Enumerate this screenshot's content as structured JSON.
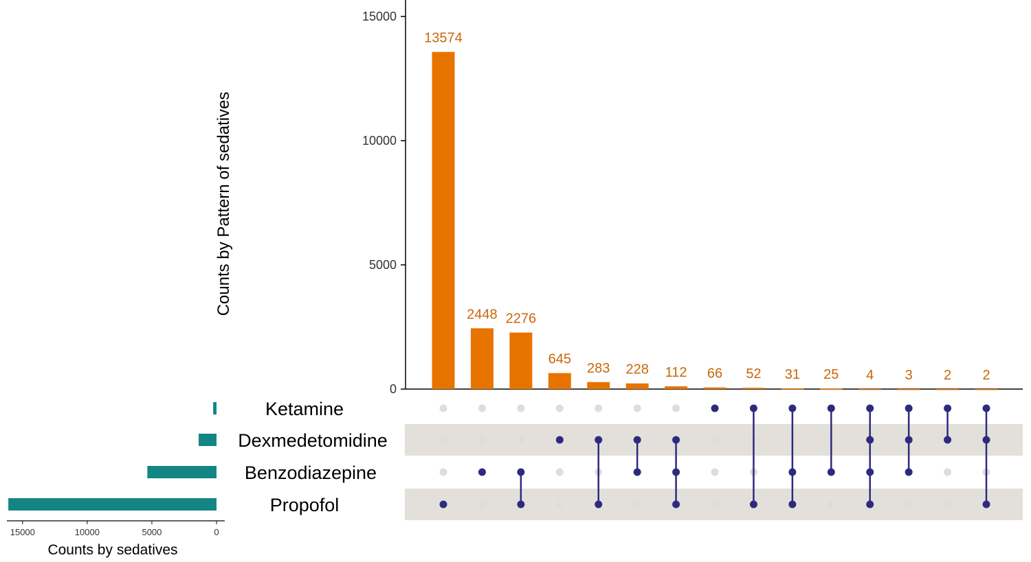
{
  "colors": {
    "bar": "#E87400",
    "bar_label": "#C8670A",
    "set_bar": "#138585",
    "dot_active": "#2E2A7E",
    "dot_inactive": "#DDDDDD",
    "stripe": "#E3E0DB"
  },
  "chart_data": {
    "type": "bar",
    "title": "",
    "ylabel": "Counts by Pattern of sedatives",
    "xlabel": "",
    "ylim": [
      0,
      15000
    ],
    "yticks": [
      0,
      5000,
      10000,
      15000
    ],
    "yticklabels": [
      "0",
      "5000",
      "10000",
      "15000"
    ],
    "sets": [
      "Ketamine",
      "Dexmedetomidine",
      "Benzodiazepine",
      "Propofol"
    ],
    "set_sizes": {
      "xlabel": "Counts by sedatives",
      "xlim": [
        0,
        17000
      ],
      "ticks": [
        15000,
        10000,
        5000,
        0
      ],
      "ticklabels": [
        "15000",
        "10000",
        "5000",
        "0"
      ],
      "values": [
        260,
        1380,
        5350,
        16100
      ]
    },
    "intersections": [
      {
        "label": "13574",
        "value": 13574,
        "members": [
          "Propofol"
        ]
      },
      {
        "label": "2448",
        "value": 2448,
        "members": [
          "Benzodiazepine"
        ]
      },
      {
        "label": "2276",
        "value": 2276,
        "members": [
          "Benzodiazepine",
          "Propofol"
        ]
      },
      {
        "label": "645",
        "value": 645,
        "members": [
          "Dexmedetomidine"
        ]
      },
      {
        "label": "283",
        "value": 283,
        "members": [
          "Dexmedetomidine",
          "Propofol"
        ]
      },
      {
        "label": "228",
        "value": 228,
        "members": [
          "Dexmedetomidine",
          "Benzodiazepine"
        ]
      },
      {
        "label": "112",
        "value": 112,
        "members": [
          "Dexmedetomidine",
          "Benzodiazepine",
          "Propofol"
        ]
      },
      {
        "label": "66",
        "value": 66,
        "members": [
          "Ketamine"
        ]
      },
      {
        "label": "52",
        "value": 52,
        "members": [
          "Ketamine",
          "Propofol"
        ]
      },
      {
        "label": "31",
        "value": 31,
        "members": [
          "Ketamine",
          "Benzodiazepine",
          "Propofol"
        ]
      },
      {
        "label": "25",
        "value": 25,
        "members": [
          "Ketamine",
          "Benzodiazepine"
        ]
      },
      {
        "label": "4",
        "value": 4,
        "members": [
          "Ketamine",
          "Dexmedetomidine",
          "Benzodiazepine",
          "Propofol"
        ]
      },
      {
        "label": "3",
        "value": 3,
        "members": [
          "Ketamine",
          "Dexmedetomidine",
          "Benzodiazepine"
        ]
      },
      {
        "label": "2",
        "value": 2,
        "members": [
          "Ketamine",
          "Dexmedetomidine"
        ]
      },
      {
        "label": "2",
        "value": 2,
        "members": [
          "Ketamine",
          "Dexmedetomidine",
          "Propofol"
        ]
      }
    ]
  }
}
